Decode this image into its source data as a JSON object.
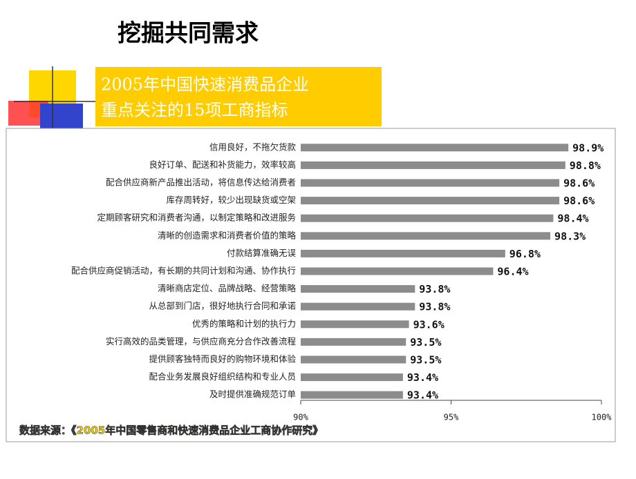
{
  "chart_data": {
    "type": "bar",
    "orientation": "horizontal",
    "title": "挖掘共同需求",
    "subtitle": [
      "2005年中国快速消费品企业",
      "重点关注的15项工商指标"
    ],
    "source": "数据来源：《2005年中国零售商和快速消费品企业工商协作研究》",
    "categories": [
      "信用良好，不拖欠货款",
      "良好订单、配送和补货能力，效率较高",
      "配合供应商新产品推出活动，将信息传达给消费者",
      "库存周转好，较少出现缺货或空架",
      "定期顾客研究和消费者沟通，以制定策略和改进服务",
      "清晰的创造需求和消费者价值的策略",
      "付款结算准确无误",
      "配合供应商促销活动，有长期的共同计划和沟通、协作执行",
      "清晰商店定位、品牌战略、经营策略",
      "从总部到门店，很好地执行合同和承诺",
      "优秀的策略和计划的执行力",
      "实行高效的品类管理，与供应商充分合作改善流程",
      "提供顾客独特而良好的购物环境和体验",
      "配合业务发展良好组织结构和专业人员",
      "及时提供准确规范订单"
    ],
    "values": [
      98.9,
      98.8,
      98.6,
      98.6,
      98.4,
      98.3,
      96.8,
      96.4,
      93.8,
      93.8,
      93.6,
      93.5,
      93.5,
      93.4,
      93.4
    ],
    "value_labels": [
      "98.9%",
      "98.8%",
      "98.6%",
      "98.6%",
      "98.4%",
      "98.3%",
      "96.8%",
      "96.4%",
      "93.8%",
      "93.8%",
      "93.6%",
      "93.5%",
      "93.5%",
      "93.4%",
      "93.4%"
    ],
    "color": "#8c8c8c",
    "xlim": [
      90,
      100
    ],
    "xticks": [
      {
        "value": 90,
        "label": "90%"
      },
      {
        "value": 95,
        "label": "95%"
      },
      {
        "value": 100,
        "label": "100%"
      }
    ]
  }
}
